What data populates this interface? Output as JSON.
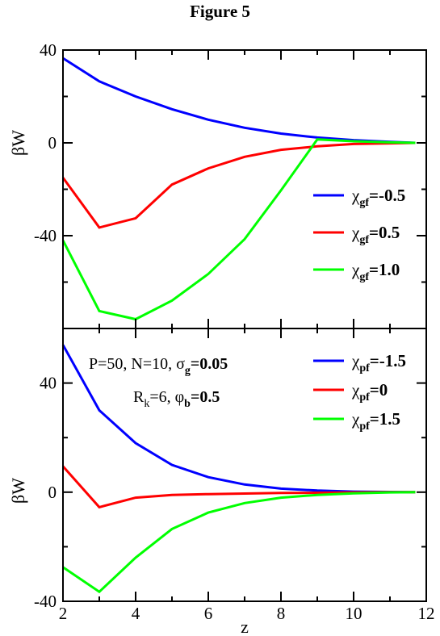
{
  "figure_title": "Figure 5",
  "colors": {
    "blue": "#0000ff",
    "red": "#ff0000",
    "green": "#00ff00",
    "axis": "#000000"
  },
  "chart_data": [
    {
      "type": "line",
      "panel": "top",
      "xlabel": "",
      "ylabel": "βW",
      "xlim": [
        2,
        12
      ],
      "ylim": [
        -80,
        40
      ],
      "yticks": [
        40,
        0,
        -40
      ],
      "ytick_labels": [
        "40",
        "0",
        "-40"
      ],
      "legend_placement": "right",
      "series": [
        {
          "name": "χgf=-0.5",
          "legend_main": "χ",
          "legend_sub": "gf",
          "legend_tail": "=-0.5",
          "color": "#0000ff",
          "x": [
            2,
            3,
            4,
            5,
            6,
            7,
            8,
            9,
            10,
            11,
            11.7
          ],
          "y": [
            36.5,
            26.5,
            20,
            14.5,
            10,
            6.5,
            4,
            2.3,
            1.2,
            0.4,
            0
          ]
        },
        {
          "name": "χgf=0.5",
          "legend_main": "χ",
          "legend_sub": "gf",
          "legend_tail": "=0.5",
          "color": "#ff0000",
          "x": [
            2,
            3,
            4,
            5,
            6,
            7,
            8,
            9,
            10,
            11,
            11.7
          ],
          "y": [
            -15,
            -36.5,
            -32.5,
            -18,
            -11,
            -6,
            -3,
            -1.5,
            -0.5,
            -0.2,
            0
          ]
        },
        {
          "name": "χgf=1.0",
          "legend_main": "χ",
          "legend_sub": "gf",
          "legend_tail": "=1.0",
          "color": "#00ff00",
          "x": [
            2,
            3,
            4,
            5,
            6,
            7,
            8,
            9,
            10,
            11,
            11.7
          ],
          "y": [
            -42,
            -72.5,
            -76,
            -68,
            -56.5,
            -41.5,
            -20.5,
            1.5,
            0.7,
            0.2,
            0
          ]
        }
      ]
    },
    {
      "type": "line",
      "panel": "bottom",
      "xlabel": "z",
      "ylabel": "βW",
      "xlim": [
        2,
        12
      ],
      "ylim": [
        -40,
        60
      ],
      "xticks": [
        2,
        4,
        6,
        8,
        10,
        12
      ],
      "xtick_labels": [
        "2",
        "4",
        "6",
        "8",
        "10",
        "12"
      ],
      "yticks": [
        40,
        0,
        -40
      ],
      "ytick_labels": [
        "40",
        "0",
        "-40"
      ],
      "legend_placement": "top-right",
      "annotations": [
        {
          "prefix": "P=50, N=10, σ",
          "sub": "g",
          "bold": "=0.05"
        },
        {
          "prefix": "R",
          "sub1": "k",
          "mid": "=6, φ",
          "sub2": "b",
          "bold": "=0.5"
        }
      ],
      "series": [
        {
          "name": "χpf=-1.5",
          "legend_main": "χ",
          "legend_sub": "pf",
          "legend_tail": "=-1.5",
          "color": "#0000ff",
          "x": [
            2,
            3,
            4,
            5,
            6,
            7,
            8,
            9,
            10,
            11,
            11.7
          ],
          "y": [
            54,
            30,
            18,
            10,
            5.5,
            2.8,
            1.3,
            0.6,
            0.2,
            0.1,
            0
          ]
        },
        {
          "name": "χpf=0",
          "legend_main": "χ",
          "legend_sub": "pf",
          "legend_tail": "=0",
          "color": "#ff0000",
          "x": [
            2,
            3,
            4,
            5,
            6,
            7,
            8,
            9,
            10,
            11,
            11.7
          ],
          "y": [
            9.5,
            -5.5,
            -2,
            -1,
            -0.7,
            -0.5,
            -0.3,
            -0.2,
            -0.1,
            0,
            0
          ]
        },
        {
          "name": "χpf=1.5",
          "legend_main": "χ",
          "legend_sub": "pf",
          "legend_tail": "=1.5",
          "color": "#00ff00",
          "x": [
            2,
            3,
            4,
            5,
            6,
            7,
            8,
            9,
            10,
            11,
            11.7
          ],
          "y": [
            -27.5,
            -36.5,
            -24,
            -13.5,
            -7.5,
            -4,
            -2,
            -1,
            -0.4,
            -0.1,
            0
          ]
        }
      ]
    }
  ]
}
